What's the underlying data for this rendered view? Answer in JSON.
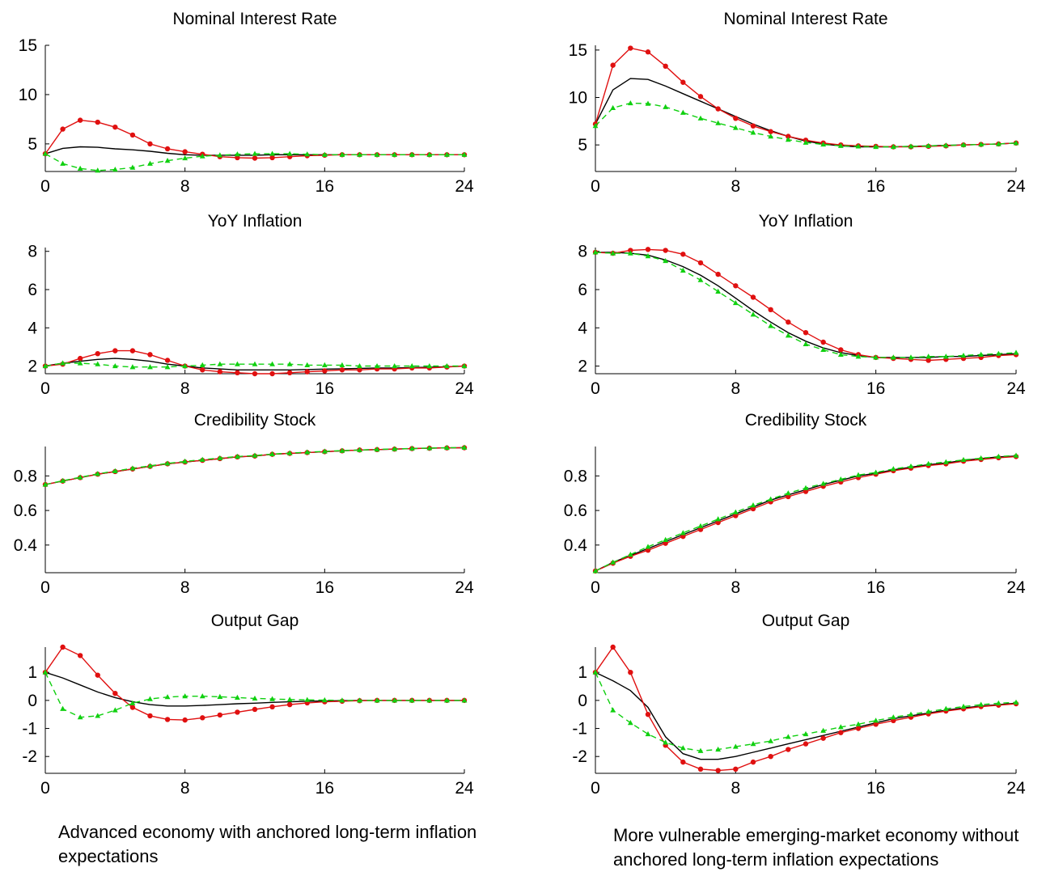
{
  "figure": {
    "caption_left": "Advanced economy with anchored long-term inflation expectations",
    "caption_right": "More vulnerable emerging-market economy without anchored long-term inflation expectations",
    "colors": {
      "baseline": "#000000",
      "red_series": "#e01010",
      "green_series": "#10d010"
    }
  },
  "chart_data": [
    {
      "type": "line",
      "title": "Nominal Interest Rate",
      "column": "left",
      "x": [
        0,
        1,
        2,
        3,
        4,
        5,
        6,
        7,
        8,
        9,
        10,
        11,
        12,
        13,
        14,
        15,
        16,
        17,
        18,
        19,
        20,
        21,
        22,
        23,
        24
      ],
      "xlim": [
        0,
        24
      ],
      "xticks": [
        0,
        8,
        16,
        24
      ],
      "ylim": [
        2.2,
        15
      ],
      "yticks": [
        5,
        10,
        15
      ],
      "ytick_labels": [
        "5",
        "10",
        "15"
      ],
      "series": [
        {
          "style": "black-solid",
          "values": [
            4,
            4.55,
            4.7,
            4.65,
            4.5,
            4.4,
            4.25,
            4.05,
            3.9,
            3.85,
            3.85,
            3.85,
            3.85,
            3.9,
            3.9,
            3.9,
            3.9,
            3.9,
            3.9,
            3.9,
            3.9,
            3.9,
            3.9,
            3.9,
            3.9
          ]
        },
        {
          "style": "red-dots",
          "values": [
            4,
            6.5,
            7.4,
            7.2,
            6.7,
            5.9,
            5.0,
            4.5,
            4.2,
            3.95,
            3.7,
            3.6,
            3.55,
            3.6,
            3.7,
            3.8,
            3.85,
            3.9,
            3.9,
            3.9,
            3.9,
            3.9,
            3.9,
            3.9,
            3.9
          ]
        },
        {
          "style": "green-triangles-dashed",
          "values": [
            4,
            3.0,
            2.5,
            2.3,
            2.4,
            2.6,
            3.0,
            3.3,
            3.55,
            3.75,
            3.85,
            3.95,
            4.0,
            4.0,
            4.0,
            3.95,
            3.9,
            3.9,
            3.9,
            3.9,
            3.9,
            3.9,
            3.9,
            3.9,
            3.9
          ]
        }
      ]
    },
    {
      "type": "line",
      "title": "Nominal Interest Rate",
      "column": "right",
      "x": [
        0,
        1,
        2,
        3,
        4,
        5,
        6,
        7,
        8,
        9,
        10,
        11,
        12,
        13,
        14,
        15,
        16,
        17,
        18,
        19,
        20,
        21,
        22,
        23,
        24
      ],
      "xlim": [
        0,
        24
      ],
      "xticks": [
        0,
        8,
        16,
        24
      ],
      "ylim": [
        2.2,
        15.5
      ],
      "yticks": [
        5,
        10,
        15
      ],
      "ytick_labels": [
        "5",
        "10",
        "15"
      ],
      "series": [
        {
          "style": "black-solid",
          "values": [
            7.2,
            10.8,
            12.0,
            11.9,
            11.2,
            10.4,
            9.6,
            8.8,
            8.0,
            7.2,
            6.5,
            5.9,
            5.4,
            5.1,
            4.9,
            4.8,
            4.8,
            4.8,
            4.85,
            4.9,
            4.95,
            5.0,
            5.05,
            5.1,
            5.2
          ]
        },
        {
          "style": "red-dots",
          "values": [
            7.2,
            13.4,
            15.2,
            14.8,
            13.3,
            11.6,
            10.1,
            8.8,
            7.8,
            7.0,
            6.4,
            5.9,
            5.5,
            5.2,
            5.0,
            4.9,
            4.85,
            4.8,
            4.8,
            4.85,
            4.9,
            5.0,
            5.05,
            5.1,
            5.2
          ]
        },
        {
          "style": "green-triangles-dashed",
          "values": [
            7.0,
            8.9,
            9.4,
            9.35,
            9.0,
            8.4,
            7.8,
            7.3,
            6.8,
            6.3,
            5.9,
            5.55,
            5.25,
            5.05,
            4.9,
            4.85,
            4.8,
            4.8,
            4.85,
            4.9,
            4.95,
            5.0,
            5.05,
            5.1,
            5.2
          ]
        }
      ]
    },
    {
      "type": "line",
      "title": "YoY Inflation",
      "column": "left",
      "x": [
        0,
        1,
        2,
        3,
        4,
        5,
        6,
        7,
        8,
        9,
        10,
        11,
        12,
        13,
        14,
        15,
        16,
        17,
        18,
        19,
        20,
        21,
        22,
        23,
        24
      ],
      "xlim": [
        0,
        24
      ],
      "xticks": [
        0,
        8,
        16,
        24
      ],
      "ylim": [
        1.6,
        8.2
      ],
      "yticks": [
        2,
        4,
        6,
        8
      ],
      "ytick_labels": [
        "2",
        "4",
        "6",
        "8"
      ],
      "series": [
        {
          "style": "black-solid",
          "values": [
            2.0,
            2.15,
            2.25,
            2.35,
            2.4,
            2.35,
            2.25,
            2.1,
            2.0,
            1.9,
            1.85,
            1.8,
            1.8,
            1.8,
            1.8,
            1.82,
            1.84,
            1.86,
            1.88,
            1.9,
            1.9,
            1.92,
            1.94,
            1.96,
            2.0
          ]
        },
        {
          "style": "red-dots",
          "values": [
            2.0,
            2.1,
            2.4,
            2.65,
            2.8,
            2.8,
            2.6,
            2.3,
            2.0,
            1.8,
            1.7,
            1.65,
            1.6,
            1.6,
            1.65,
            1.7,
            1.75,
            1.8,
            1.8,
            1.85,
            1.85,
            1.9,
            1.9,
            1.95,
            2.0
          ]
        },
        {
          "style": "green-triangles-dashed",
          "values": [
            2.0,
            2.15,
            2.15,
            2.1,
            2.0,
            1.95,
            1.95,
            1.95,
            2.0,
            2.05,
            2.1,
            2.1,
            2.1,
            2.1,
            2.1,
            2.05,
            2.05,
            2.05,
            2.0,
            2.0,
            2.0,
            2.0,
            2.0,
            2.0,
            2.0
          ]
        }
      ]
    },
    {
      "type": "line",
      "title": "YoY Inflation",
      "column": "right",
      "x": [
        0,
        1,
        2,
        3,
        4,
        5,
        6,
        7,
        8,
        9,
        10,
        11,
        12,
        13,
        14,
        15,
        16,
        17,
        18,
        19,
        20,
        21,
        22,
        23,
        24
      ],
      "xlim": [
        0,
        24
      ],
      "xticks": [
        0,
        8,
        16,
        24
      ],
      "ylim": [
        1.6,
        8.2
      ],
      "yticks": [
        2,
        4,
        6,
        8
      ],
      "ytick_labels": [
        "2",
        "4",
        "6",
        "8"
      ],
      "series": [
        {
          "style": "black-solid",
          "values": [
            7.95,
            7.95,
            7.9,
            7.8,
            7.55,
            7.2,
            6.75,
            6.2,
            5.55,
            4.9,
            4.3,
            3.75,
            3.3,
            2.95,
            2.7,
            2.55,
            2.45,
            2.45,
            2.45,
            2.45,
            2.5,
            2.5,
            2.55,
            2.6,
            2.65
          ]
        },
        {
          "style": "red-dots",
          "values": [
            7.95,
            7.9,
            8.05,
            8.1,
            8.05,
            7.85,
            7.4,
            6.8,
            6.2,
            5.6,
            4.95,
            4.3,
            3.75,
            3.25,
            2.85,
            2.6,
            2.45,
            2.4,
            2.35,
            2.3,
            2.35,
            2.4,
            2.45,
            2.55,
            2.6
          ]
        },
        {
          "style": "green-triangles-dashed",
          "values": [
            7.95,
            7.9,
            7.9,
            7.75,
            7.5,
            7.0,
            6.5,
            5.9,
            5.3,
            4.7,
            4.1,
            3.6,
            3.15,
            2.85,
            2.6,
            2.5,
            2.45,
            2.45,
            2.45,
            2.5,
            2.5,
            2.55,
            2.6,
            2.65,
            2.7
          ]
        }
      ]
    },
    {
      "type": "line",
      "title": "Credibility Stock",
      "column": "left",
      "x": [
        0,
        1,
        2,
        3,
        4,
        5,
        6,
        7,
        8,
        9,
        10,
        11,
        12,
        13,
        14,
        15,
        16,
        17,
        18,
        19,
        20,
        21,
        22,
        23,
        24
      ],
      "xlim": [
        0,
        24
      ],
      "xticks": [
        0,
        8,
        16,
        24
      ],
      "ylim": [
        0.24,
        0.97
      ],
      "yticks": [
        0.4,
        0.6,
        0.8
      ],
      "ytick_labels": [
        "0.4",
        "0.6",
        "0.8"
      ],
      "series": [
        {
          "style": "black-solid",
          "values": [
            0.75,
            0.77,
            0.79,
            0.81,
            0.825,
            0.84,
            0.855,
            0.87,
            0.88,
            0.89,
            0.9,
            0.91,
            0.915,
            0.925,
            0.93,
            0.935,
            0.94,
            0.945,
            0.95,
            0.952,
            0.955,
            0.958,
            0.96,
            0.962,
            0.963
          ]
        },
        {
          "style": "red-dots",
          "values": [
            0.75,
            0.77,
            0.79,
            0.81,
            0.825,
            0.84,
            0.855,
            0.87,
            0.88,
            0.89,
            0.9,
            0.91,
            0.915,
            0.925,
            0.93,
            0.935,
            0.94,
            0.945,
            0.95,
            0.952,
            0.955,
            0.958,
            0.96,
            0.962,
            0.963
          ]
        },
        {
          "style": "green-triangles-dashed",
          "values": [
            0.75,
            0.772,
            0.792,
            0.812,
            0.828,
            0.844,
            0.858,
            0.872,
            0.884,
            0.894,
            0.903,
            0.912,
            0.918,
            0.926,
            0.932,
            0.937,
            0.942,
            0.946,
            0.95,
            0.953,
            0.956,
            0.959,
            0.961,
            0.963,
            0.964
          ]
        }
      ]
    },
    {
      "type": "line",
      "title": "Credibility Stock",
      "column": "right",
      "x": [
        0,
        1,
        2,
        3,
        4,
        5,
        6,
        7,
        8,
        9,
        10,
        11,
        12,
        13,
        14,
        15,
        16,
        17,
        18,
        19,
        20,
        21,
        22,
        23,
        24
      ],
      "xlim": [
        0,
        24
      ],
      "xticks": [
        0,
        8,
        16,
        24
      ],
      "ylim": [
        0.24,
        0.97
      ],
      "yticks": [
        0.4,
        0.6,
        0.8
      ],
      "ytick_labels": [
        "0.4",
        "0.6",
        "0.8"
      ],
      "series": [
        {
          "style": "black-solid",
          "values": [
            0.25,
            0.3,
            0.34,
            0.38,
            0.42,
            0.46,
            0.5,
            0.54,
            0.58,
            0.62,
            0.66,
            0.69,
            0.72,
            0.75,
            0.775,
            0.8,
            0.815,
            0.835,
            0.85,
            0.865,
            0.875,
            0.89,
            0.9,
            0.91,
            0.915
          ]
        },
        {
          "style": "red-dots",
          "values": [
            0.25,
            0.295,
            0.335,
            0.37,
            0.41,
            0.45,
            0.49,
            0.53,
            0.57,
            0.61,
            0.65,
            0.68,
            0.71,
            0.74,
            0.765,
            0.79,
            0.81,
            0.83,
            0.845,
            0.86,
            0.87,
            0.885,
            0.895,
            0.905,
            0.912
          ]
        },
        {
          "style": "green-triangles-dashed",
          "values": [
            0.25,
            0.3,
            0.345,
            0.39,
            0.43,
            0.47,
            0.51,
            0.55,
            0.59,
            0.63,
            0.665,
            0.7,
            0.73,
            0.755,
            0.78,
            0.805,
            0.82,
            0.84,
            0.855,
            0.87,
            0.88,
            0.893,
            0.902,
            0.912,
            0.918
          ]
        }
      ]
    },
    {
      "type": "line",
      "title": "Output Gap",
      "column": "left",
      "x": [
        0,
        1,
        2,
        3,
        4,
        5,
        6,
        7,
        8,
        9,
        10,
        11,
        12,
        13,
        14,
        15,
        16,
        17,
        18,
        19,
        20,
        21,
        22,
        23,
        24
      ],
      "xlim": [
        0,
        24
      ],
      "xticks": [
        0,
        8,
        16,
        24
      ],
      "ylim": [
        -2.6,
        1.9
      ],
      "yticks": [
        -2,
        -1,
        0,
        1
      ],
      "ytick_labels": [
        "-2",
        "-1",
        "0",
        "1"
      ],
      "series": [
        {
          "style": "black-solid",
          "values": [
            1.0,
            0.8,
            0.55,
            0.3,
            0.1,
            -0.05,
            -0.15,
            -0.2,
            -0.2,
            -0.18,
            -0.15,
            -0.12,
            -0.1,
            -0.07,
            -0.05,
            -0.03,
            -0.02,
            -0.01,
            0,
            0,
            0,
            0,
            0,
            0,
            0
          ]
        },
        {
          "style": "red-dots",
          "values": [
            1.0,
            1.9,
            1.6,
            0.9,
            0.25,
            -0.25,
            -0.55,
            -0.68,
            -0.7,
            -0.62,
            -0.52,
            -0.42,
            -0.32,
            -0.23,
            -0.15,
            -0.09,
            -0.05,
            -0.03,
            -0.01,
            0,
            0,
            0,
            0,
            0,
            0
          ]
        },
        {
          "style": "green-triangles-dashed",
          "values": [
            1.0,
            -0.3,
            -0.6,
            -0.55,
            -0.35,
            -0.1,
            0.05,
            0.12,
            0.15,
            0.15,
            0.13,
            0.1,
            0.07,
            0.05,
            0.03,
            0.02,
            0.01,
            0,
            0,
            0,
            0,
            0,
            0,
            0,
            0
          ]
        }
      ]
    },
    {
      "type": "line",
      "title": "Output Gap",
      "column": "right",
      "x": [
        0,
        1,
        2,
        3,
        4,
        5,
        6,
        7,
        8,
        9,
        10,
        11,
        12,
        13,
        14,
        15,
        16,
        17,
        18,
        19,
        20,
        21,
        22,
        23,
        24
      ],
      "xlim": [
        0,
        24
      ],
      "xticks": [
        0,
        8,
        16,
        24
      ],
      "ylim": [
        -2.6,
        1.9
      ],
      "yticks": [
        -2,
        -1,
        0,
        1
      ],
      "ytick_labels": [
        "-2",
        "-1",
        "0",
        "1"
      ],
      "series": [
        {
          "style": "black-solid",
          "values": [
            1.0,
            0.7,
            0.35,
            -0.25,
            -1.3,
            -1.9,
            -2.1,
            -2.1,
            -2.0,
            -1.85,
            -1.7,
            -1.55,
            -1.4,
            -1.25,
            -1.1,
            -0.95,
            -0.8,
            -0.65,
            -0.55,
            -0.45,
            -0.35,
            -0.27,
            -0.2,
            -0.15,
            -0.1
          ]
        },
        {
          "style": "red-dots",
          "values": [
            1.0,
            1.9,
            1.0,
            -0.5,
            -1.6,
            -2.2,
            -2.45,
            -2.5,
            -2.45,
            -2.2,
            -2.0,
            -1.75,
            -1.55,
            -1.35,
            -1.15,
            -1.0,
            -0.85,
            -0.72,
            -0.6,
            -0.48,
            -0.38,
            -0.3,
            -0.22,
            -0.17,
            -0.12
          ]
        },
        {
          "style": "green-triangles-dashed",
          "values": [
            1.0,
            -0.35,
            -0.8,
            -1.2,
            -1.5,
            -1.7,
            -1.8,
            -1.75,
            -1.65,
            -1.55,
            -1.45,
            -1.3,
            -1.2,
            -1.08,
            -0.95,
            -0.85,
            -0.72,
            -0.6,
            -0.5,
            -0.4,
            -0.3,
            -0.22,
            -0.15,
            -0.1,
            -0.07
          ]
        }
      ]
    }
  ]
}
